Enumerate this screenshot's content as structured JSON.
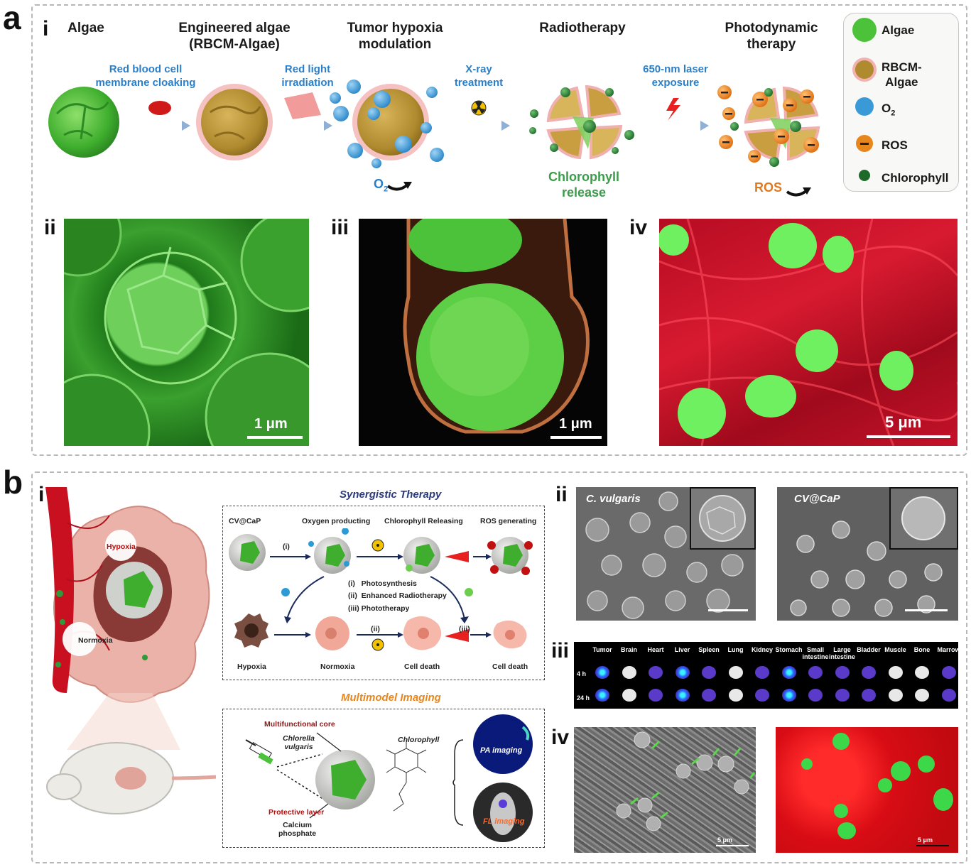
{
  "panel_a": {
    "letter": "a",
    "sub_i": "i",
    "sub_ii": "ii",
    "sub_iii": "iii",
    "sub_iv": "iv",
    "steps": {
      "algae": "Algae",
      "engineered_line1": "Engineered algae",
      "engineered_line2": "(RBCM-Algae)",
      "hypoxia_line1": "Tumor hypoxia",
      "hypoxia_line2": "modulation",
      "radiotherapy": "Radiotherapy",
      "pdt_line1": "Photodynamic",
      "pdt_line2": "therapy"
    },
    "arrows": {
      "rbc_line1": "Red blood cell",
      "rbc_line2": "membrane cloaking",
      "red_line1": "Red light",
      "red_line2": "irradiation",
      "xray_line1": "X-ray",
      "xray_line2": "treatment",
      "laser_line1": "650-nm laser",
      "laser_line2": "exposure"
    },
    "o2_label": "O",
    "o2_sub": "2",
    "chlorophyll_line1": "Chlorophyll",
    "chlorophyll_line2": "release",
    "ros_label": "ROS",
    "legend": {
      "algae": "Algae",
      "rbcm_line1": "RBCM-",
      "rbcm_line2": "Algae",
      "o2": "O",
      "o2_sub": "2",
      "ros": "ROS",
      "chlorophyll": "Chlorophyll"
    },
    "scale_ii": "1 μm",
    "scale_iii": "1 μm",
    "scale_iv": "5 μm"
  },
  "panel_b": {
    "letter": "b",
    "sub_i": "i",
    "sub_ii": "ii",
    "sub_iii": "iii",
    "sub_iv": "iv",
    "hypoxia_tag": "Hypoxia",
    "normoxia_tag": "Normoxia",
    "synergistic_title": "Synergistic Therapy",
    "col_labels": [
      "CV@CaP",
      "Oxygen producting",
      "Chlorophyll Releasing",
      "ROS generating"
    ],
    "step_i": "(i)",
    "step_ii": "(ii)",
    "step_iii": "(iii)",
    "list": [
      "(i)   Photosynthesis",
      "(ii)  Enhanced Radiotherapy",
      "(iii) Phototherapy"
    ],
    "bottom_labels": [
      "Hypoxia",
      "Normoxia",
      "Cell death",
      "Cell death"
    ],
    "imaging_title": "Multimodel Imaging",
    "multifunctional_core": "Multifunctional core",
    "chlorella_line1": "Chlorella",
    "chlorella_line2": "vulgaris",
    "protective_layer": "Protective layer",
    "calcium_line1": "Calcium",
    "calcium_line2": "phosphate",
    "chlorophyll_title": "Chlorophyll",
    "pa_imaging": "PA imaging",
    "fl_imaging": "FL imaging",
    "sem_left": "C. vulgaris",
    "sem_right": "CV@CaP",
    "organs": [
      "Tumor",
      "Brain",
      "Heart",
      "Liver",
      "Spleen",
      "Lung",
      "Kidney",
      "Stomach",
      "Small intestine",
      "Large intestine",
      "Bladder",
      "Muscle",
      "Bone",
      "Marrow"
    ],
    "time_4h": "4 h",
    "time_24h": "24 h",
    "scale_iv_left": "5 μm",
    "scale_iv_right": "5 μm"
  },
  "colors": {
    "algae_green": "#4cc23a",
    "o2_blue": "#3a9ad8",
    "ros_orange": "#e8861e",
    "text_blue": "#2a7fc8",
    "text_green": "#3c9c4c",
    "text_orange": "#e07a1e",
    "tissue_red": "#c8102e"
  }
}
